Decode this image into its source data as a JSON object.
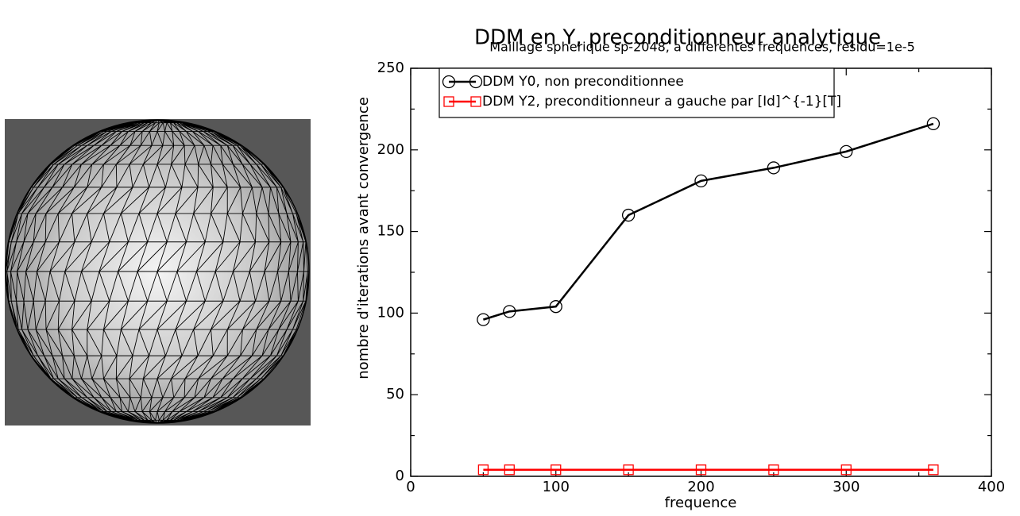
{
  "chart_data": {
    "type": "line",
    "title": "DDM en Y, preconditionneur analytique",
    "subtitle": "Maillage spherique sp-2048, a differentes frequences, residu=1e-5",
    "xlabel": "frequence",
    "ylabel": "nombre d'iterations avant convergence",
    "x": [
      50,
      68,
      100,
      150,
      200,
      250,
      300,
      360
    ],
    "series": [
      {
        "name": "DDM Y0, non preconditionnee",
        "color": "#000000",
        "marker": "circle",
        "values": [
          96,
          101,
          104,
          160,
          181,
          189,
          199,
          216
        ]
      },
      {
        "name": "DDM Y2, preconditionneur a gauche par [Id]^{-1}[T]",
        "color": "#ff0000",
        "marker": "square",
        "values": [
          4,
          4,
          4,
          4,
          4,
          4,
          4,
          4
        ]
      }
    ],
    "xlim": [
      0,
      400
    ],
    "xticks": [
      0,
      100,
      200,
      300,
      400
    ],
    "xminorticks": [
      50,
      150,
      250,
      350
    ],
    "ylim": [
      0,
      250
    ],
    "yticks": [
      0,
      50,
      100,
      150,
      200,
      250
    ],
    "yminorticks": [
      25,
      75,
      125,
      175,
      225
    ],
    "legend": "upper left"
  }
}
